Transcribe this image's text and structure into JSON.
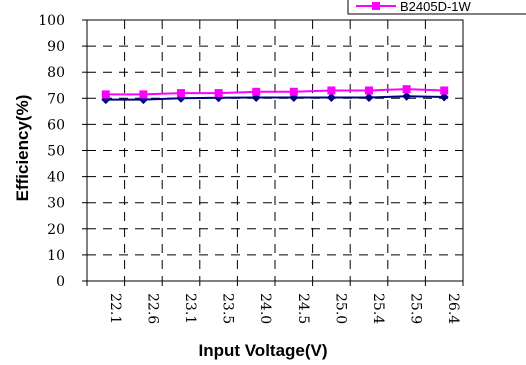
{
  "chart_data": {
    "type": "line",
    "x": [
      "22.1",
      "22.6",
      "23.1",
      "23.5",
      "24.0",
      "24.5",
      "25.0",
      "25.4",
      "25.9",
      "26.4"
    ],
    "series": [
      {
        "name": "",
        "color": "#000080",
        "marker": "diamond",
        "values": [
          69.5,
          69.5,
          70,
          70.2,
          70.3,
          70.3,
          70.3,
          70.3,
          70.8,
          70.5
        ]
      },
      {
        "name": "B2405D-1W",
        "color": "#ff00ff",
        "marker": "square",
        "values": [
          71.5,
          71.5,
          72,
          72,
          72.5,
          72.5,
          73,
          73,
          73.5,
          73
        ]
      }
    ],
    "xlabel": "Input Voltage(V)",
    "ylabel": "Efficiency(%)",
    "yticks": [
      "0",
      "10",
      "20",
      "30",
      "40",
      "50",
      "60",
      "70",
      "80",
      "90",
      "100"
    ],
    "ylim": [
      0,
      100
    ],
    "grid": true,
    "legend_position": "top-right"
  }
}
